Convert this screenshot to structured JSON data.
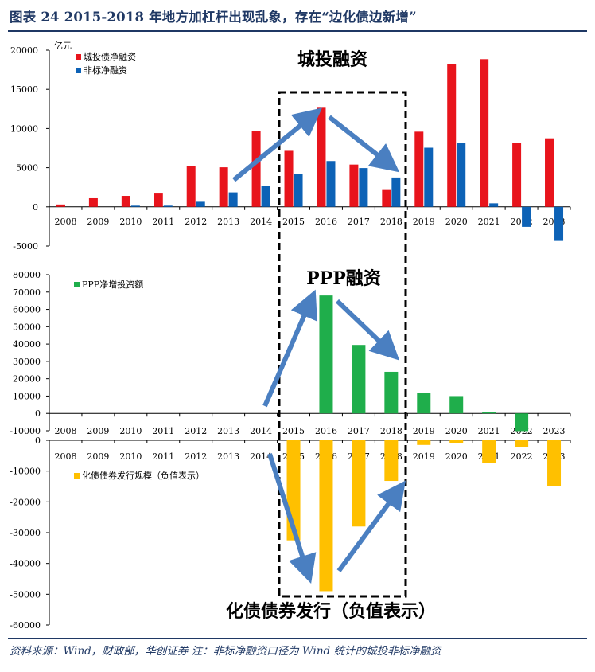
{
  "figure_title": "图表 24   2015-2018 年地方加杠杆出现乱象，存在“边化债边新增”",
  "source_note": "资料来源：Wind，财政部，华创证券  注：非标净融资口径为 Wind 统计的城投非标净融资",
  "annotations": {
    "top_panel": "城投融资",
    "middle_panel": "PPP融资",
    "bottom_panel": "化债债券发行（负值表示）"
  },
  "colors": {
    "chengtou": "#e8141c",
    "feibiao": "#0d62b6",
    "ppp": "#1fae4b",
    "huazhai": "#ffc000",
    "arrow": "#4a7fc1",
    "frame": "#1f3864"
  },
  "chart_data": [
    {
      "type": "bar",
      "unit": "亿元",
      "categories": [
        "2008",
        "2009",
        "2010",
        "2011",
        "2012",
        "2013",
        "2014",
        "2015",
        "2016",
        "2017",
        "2018",
        "2019",
        "2020",
        "2021",
        "2022",
        "2023"
      ],
      "series": [
        {
          "name": "城投债净融资",
          "values": [
            300,
            1100,
            1400,
            1700,
            5200,
            5050,
            9700,
            7150,
            12650,
            5400,
            2150,
            9600,
            18250,
            18850,
            8200,
            8750
          ]
        },
        {
          "name": "非标净融资",
          "values": [
            0,
            0,
            150,
            150,
            650,
            1850,
            2650,
            4150,
            5850,
            4950,
            3750,
            7550,
            8200,
            450,
            -2550,
            -4350
          ]
        }
      ],
      "ylim": [
        -5000,
        20000
      ],
      "yticks": [
        "20000",
        "15000",
        "10000",
        "5000",
        "0",
        "-5000"
      ],
      "legend_position": "top-left"
    },
    {
      "type": "bar",
      "categories": [
        "2008",
        "2009",
        "2010",
        "2011",
        "2012",
        "2013",
        "2014",
        "2015",
        "2016",
        "2017",
        "2018",
        "2019",
        "2020",
        "2021",
        "2022",
        "2023"
      ],
      "series": [
        {
          "name": "PPP净增投资额",
          "values": [
            0,
            0,
            0,
            0,
            0,
            0,
            0,
            0,
            68000,
            39500,
            24000,
            12000,
            10000,
            700,
            -10200,
            0
          ]
        }
      ],
      "ylim": [
        -10000,
        80000
      ],
      "yticks": [
        "80000",
        "70000",
        "60000",
        "50000",
        "40000",
        "30000",
        "20000",
        "10000",
        "0",
        "-10000"
      ],
      "legend_position": "top-left"
    },
    {
      "type": "bar",
      "categories": [
        "2008",
        "2009",
        "2010",
        "2011",
        "2012",
        "2013",
        "2014",
        "2015",
        "2016",
        "2017",
        "2018",
        "2019",
        "2020",
        "2021",
        "2022",
        "2023"
      ],
      "series": [
        {
          "name": "化债债券发行规模（负值表示）",
          "values": [
            0,
            0,
            0,
            0,
            0,
            0,
            0,
            -32500,
            -49000,
            -28000,
            -13200,
            -1500,
            -1000,
            -7500,
            -2200,
            -14800
          ]
        }
      ],
      "ylim": [
        -60000,
        0
      ],
      "yticks": [
        "0",
        "-10000",
        "-20000",
        "-30000",
        "-40000",
        "-50000",
        "-60000"
      ],
      "legend_position": "top-left"
    }
  ]
}
